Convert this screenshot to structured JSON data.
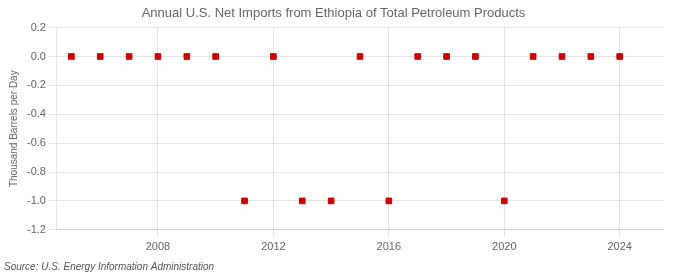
{
  "chart_data": {
    "type": "scatter",
    "title": "Annual U.S. Net Imports from Ethiopia of Total Petroleum Products",
    "ylabel": "Thousand Barrels per Day",
    "annotation": "Source: U.S. Energy Information Administration",
    "x": [
      2005,
      2006,
      2007,
      2008,
      2009,
      2010,
      2011,
      2012,
      2013,
      2014,
      2015,
      2016,
      2017,
      2018,
      2019,
      2020,
      2021,
      2022,
      2023,
      2024
    ],
    "values": [
      0,
      0,
      0,
      0,
      0,
      0,
      -1,
      0,
      -1,
      -1,
      0,
      -1,
      0,
      0,
      0,
      -1,
      0,
      0,
      0,
      0
    ],
    "color": "#cc0000",
    "marker": "square",
    "xlim": [
      2004.5,
      2025.5
    ],
    "xticks": [
      2008,
      2012,
      2016,
      2020,
      2024
    ],
    "ylim": [
      -1.2,
      0.2
    ],
    "yticks": [
      0.2,
      {
        "value": 0,
        "label": "0.0"
      },
      -0.2,
      -0.4,
      -0.6,
      -0.8,
      {
        "value": -1,
        "label": "-1.0"
      },
      -1.2
    ],
    "grid": true
  }
}
